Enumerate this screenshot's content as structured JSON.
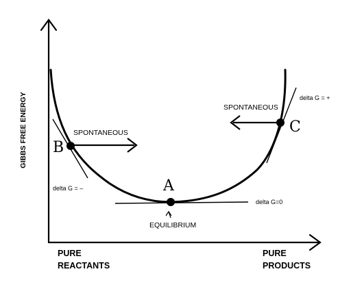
{
  "axes": {
    "y_label": "GIBBS FREE ENERGY",
    "x_left_label": [
      "PURE",
      "REACTANTS"
    ],
    "x_right_label": [
      "PURE",
      "PRODUCTS"
    ]
  },
  "points": {
    "A": {
      "letter": "A",
      "tangent_label": "delta G=0",
      "caption": "EQUILIBRIUM",
      "pointer_glyph": "^"
    },
    "B": {
      "letter": "B",
      "tangent_label": "delta G = –",
      "arrow_label": "SPONTANEOUS",
      "arrow_direction": "right"
    },
    "C": {
      "letter": "C",
      "tangent_label": "delta G = +",
      "arrow_label": "SPONTANEOUS",
      "arrow_direction": "left"
    }
  },
  "colors": {
    "ink": "#000000",
    "background": "#ffffff"
  }
}
